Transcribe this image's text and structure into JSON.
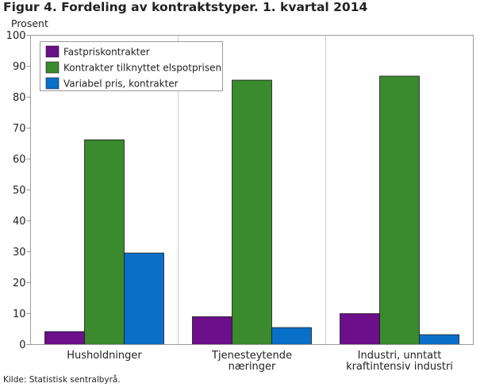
{
  "chart_data": {
    "type": "bar",
    "title": "Figur 4. Fordeling av kontraktstyper. 1. kvartal 2014",
    "ylabel": "Prosent",
    "xlabel": "",
    "ylim": [
      0,
      100
    ],
    "yticks": [
      0,
      10,
      20,
      30,
      40,
      50,
      60,
      70,
      80,
      90,
      100
    ],
    "categories": [
      [
        "Husholdninger"
      ],
      [
        "Tjenesteytende",
        "næringer"
      ],
      [
        "Industri, unntatt",
        "kraftintensiv industri"
      ]
    ],
    "series": [
      {
        "name": "Fastpriskontrakter",
        "color": "#6b0f8a",
        "values": [
          4.2,
          9.0,
          10.0
        ]
      },
      {
        "name": "Kontrakter tilknyttet elspotprisen",
        "color": "#3a8a2e",
        "values": [
          66.2,
          85.5,
          86.8
        ]
      },
      {
        "name": "Variabel pris, kontrakter",
        "color": "#0a6fc8",
        "values": [
          29.6,
          5.5,
          3.2
        ]
      }
    ],
    "grid": false,
    "legend": "top-left"
  },
  "source": "Kilde: Statistisk sentralbyrå."
}
